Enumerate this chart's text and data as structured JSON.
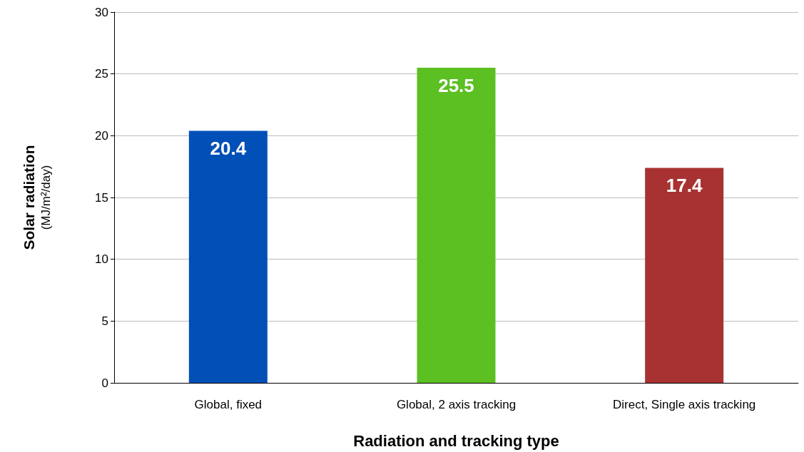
{
  "chart_data": {
    "type": "bar",
    "xlabel": "Radiation and tracking type",
    "ylabel": "Solar radiation\n(MJ/m²/day)",
    "categories": [
      "Global, fixed",
      "Global, 2 axis tracking",
      "Direct, Single axis tracking"
    ],
    "values": [
      20.4,
      25.5,
      17.4
    ],
    "colors": [
      "#0050b8",
      "#5cbf22",
      "#a83232"
    ],
    "ylim": [
      0,
      30
    ],
    "yticks": [
      0,
      5,
      10,
      15,
      20,
      25,
      30
    ],
    "grid": "y",
    "data_labels": true
  }
}
